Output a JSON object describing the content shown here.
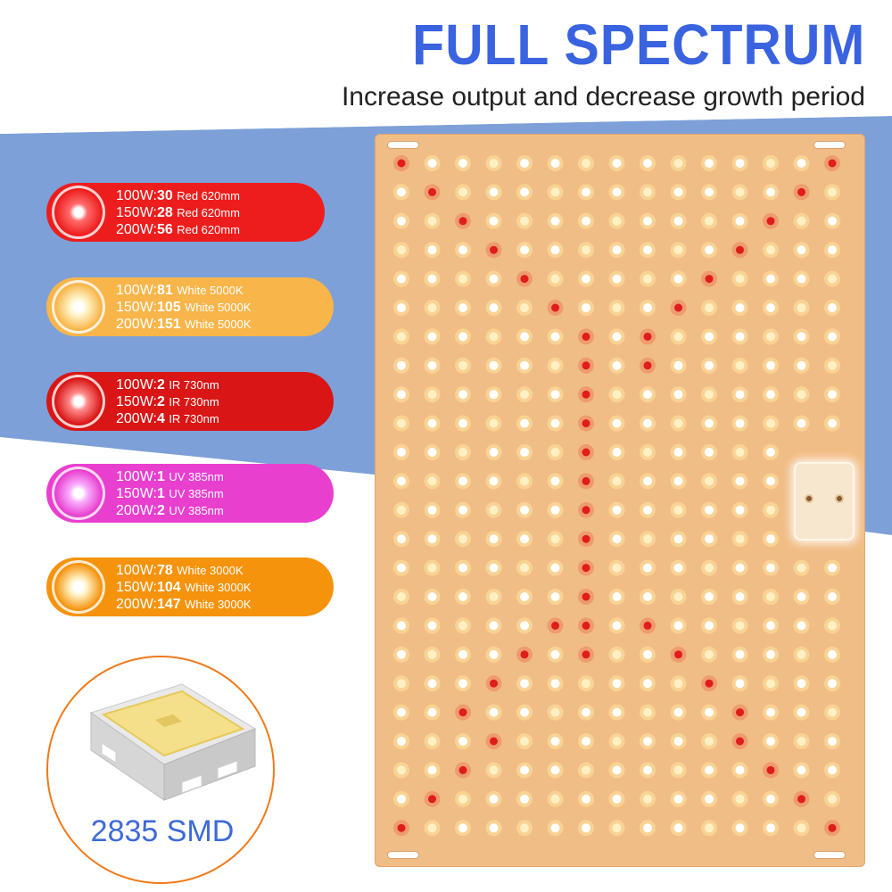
{
  "header": {
    "title": "FULL SPECTRUM",
    "subtitle": "Increase output and decrease growth period"
  },
  "colors": {
    "headline": "#3a63e0",
    "background_band": "#7da0d8",
    "panel": "#f1bd86",
    "red": "#ee1d1d",
    "white5000k": "#f8b54a",
    "ir": "#d91515",
    "uv": "#e93fcf",
    "white3000k": "#f5930d",
    "smd_caption": "#3d6ad6"
  },
  "specs": [
    {
      "icon": "red-led-icon",
      "color": "#ee1d1d",
      "rows": [
        {
          "power": "100W:",
          "count": "30",
          "desc": "Red 620mm"
        },
        {
          "power": "150W:",
          "count": "28",
          "desc": "Red 620mm"
        },
        {
          "power": "200W:",
          "count": "56",
          "desc": "Red 620mm"
        }
      ]
    },
    {
      "icon": "white-5000k-led-icon",
      "color": "#f8b54a",
      "rows": [
        {
          "power": "100W:",
          "count": "81",
          "desc": "White 5000K"
        },
        {
          "power": "150W:",
          "count": "105",
          "desc": "White 5000K"
        },
        {
          "power": "200W:",
          "count": "151",
          "desc": "White 5000K"
        }
      ]
    },
    {
      "icon": "ir-led-icon",
      "color": "#d91515",
      "rows": [
        {
          "power": "100W:",
          "count": "2",
          "desc": "IR 730nm"
        },
        {
          "power": "150W:",
          "count": "2",
          "desc": "IR 730nm"
        },
        {
          "power": "200W:",
          "count": "4",
          "desc": "IR 730nm"
        }
      ]
    },
    {
      "icon": "uv-led-icon",
      "color": "#e93fcf",
      "rows": [
        {
          "power": "100W:",
          "count": "1",
          "desc": "UV 385nm"
        },
        {
          "power": "150W:",
          "count": "1",
          "desc": "UV 385nm"
        },
        {
          "power": "200W:",
          "count": "2",
          "desc": "UV 385nm"
        }
      ]
    },
    {
      "icon": "white-3000k-led-icon",
      "color": "#f5930d",
      "rows": [
        {
          "power": "100W:",
          "count": "78",
          "desc": "White 3000K"
        },
        {
          "power": "150W:",
          "count": "104",
          "desc": "White 3000K"
        },
        {
          "power": "200W:",
          "count": "147",
          "desc": "White 3000K"
        }
      ]
    }
  ],
  "smd": {
    "label": "2835 SMD",
    "icon": "smd-chip-icon"
  },
  "panel": {
    "icon": "led-grow-panel-icon"
  }
}
